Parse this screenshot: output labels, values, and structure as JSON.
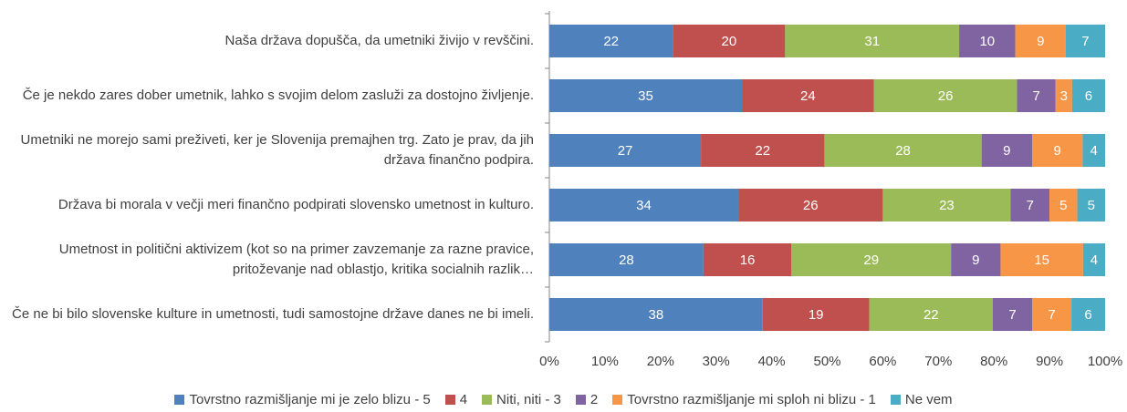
{
  "chart_data": {
    "type": "bar",
    "orientation": "horizontal",
    "stacked": "percent",
    "categories": [
      "Naša država dopušča, da umetniki živijo v revščini.",
      "Če je nekdo zares dober umetnik, lahko s svojim delom zasluži za dostojno življenje.",
      "Umetniki ne morejo sami preživeti, ker je Slovenija premajhen trg. Zato je prav, da jih država finančno podpira.",
      "Država bi morala v večji meri finančno podpirati slovensko umetnost in kulturo.",
      "Umetnost in politični aktivizem (kot so na primer zavzemanje za razne pravice, pritoževanje nad oblastjo, kritika socialnih razlik…",
      "Če ne bi bilo slovenske kulture in umetnosti, tudi samostojne države danes ne bi imeli."
    ],
    "series": [
      {
        "name": "Tovrstno razmišljanje mi je zelo blizu - 5",
        "color": "#4f81bd",
        "values": [
          22,
          35,
          27,
          34,
          28,
          38
        ]
      },
      {
        "name": "4",
        "color": "#c0504d",
        "values": [
          20,
          24,
          22,
          26,
          16,
          19
        ]
      },
      {
        "name": "Niti, niti - 3",
        "color": "#9bbb59",
        "values": [
          31,
          26,
          28,
          23,
          29,
          22
        ]
      },
      {
        "name": "2",
        "color": "#8064a2",
        "values": [
          10,
          7,
          9,
          7,
          9,
          7
        ]
      },
      {
        "name": "Tovrstno razmišljanje mi sploh ni blizu - 1",
        "color": "#f79646",
        "values": [
          9,
          3,
          9,
          5,
          15,
          7
        ]
      },
      {
        "name": "Ne vem",
        "color": "#4bacc6",
        "values": [
          7,
          6,
          4,
          5,
          4,
          6
        ]
      }
    ],
    "xlim": [
      0,
      100
    ],
    "xticks": [
      {
        "value": 0,
        "label": "0%"
      },
      {
        "value": 10,
        "label": "10%"
      },
      {
        "value": 20,
        "label": "20%"
      },
      {
        "value": 30,
        "label": "30%"
      },
      {
        "value": 40,
        "label": "40%"
      },
      {
        "value": 50,
        "label": "50%"
      },
      {
        "value": 60,
        "label": "60%"
      },
      {
        "value": 70,
        "label": "70%"
      },
      {
        "value": 80,
        "label": "80%"
      },
      {
        "value": 90,
        "label": "90%"
      },
      {
        "value": 100,
        "label": "100%"
      }
    ],
    "grid": false,
    "legend": "bottom"
  }
}
